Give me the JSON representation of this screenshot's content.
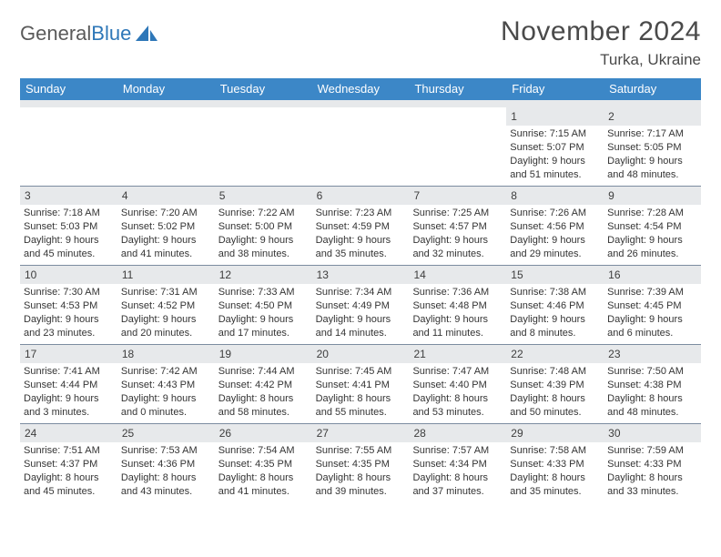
{
  "logo": {
    "text_gray": "General",
    "text_blue": "Blue"
  },
  "title": "November 2024",
  "location": "Turka, Ukraine",
  "colors": {
    "header_bg": "#3c87c7",
    "header_text": "#ffffff",
    "daynum_bg": "#e7e9eb",
    "border": "#7c8ca0",
    "logo_gray": "#5a5a5a",
    "logo_blue": "#2e77b8"
  },
  "day_names": [
    "Sunday",
    "Monday",
    "Tuesday",
    "Wednesday",
    "Thursday",
    "Friday",
    "Saturday"
  ],
  "weeks": [
    [
      {
        "n": "",
        "sr": "",
        "ss": "",
        "dl": ""
      },
      {
        "n": "",
        "sr": "",
        "ss": "",
        "dl": ""
      },
      {
        "n": "",
        "sr": "",
        "ss": "",
        "dl": ""
      },
      {
        "n": "",
        "sr": "",
        "ss": "",
        "dl": ""
      },
      {
        "n": "",
        "sr": "",
        "ss": "",
        "dl": ""
      },
      {
        "n": "1",
        "sr": "Sunrise: 7:15 AM",
        "ss": "Sunset: 5:07 PM",
        "dl": "Daylight: 9 hours and 51 minutes."
      },
      {
        "n": "2",
        "sr": "Sunrise: 7:17 AM",
        "ss": "Sunset: 5:05 PM",
        "dl": "Daylight: 9 hours and 48 minutes."
      }
    ],
    [
      {
        "n": "3",
        "sr": "Sunrise: 7:18 AM",
        "ss": "Sunset: 5:03 PM",
        "dl": "Daylight: 9 hours and 45 minutes."
      },
      {
        "n": "4",
        "sr": "Sunrise: 7:20 AM",
        "ss": "Sunset: 5:02 PM",
        "dl": "Daylight: 9 hours and 41 minutes."
      },
      {
        "n": "5",
        "sr": "Sunrise: 7:22 AM",
        "ss": "Sunset: 5:00 PM",
        "dl": "Daylight: 9 hours and 38 minutes."
      },
      {
        "n": "6",
        "sr": "Sunrise: 7:23 AM",
        "ss": "Sunset: 4:59 PM",
        "dl": "Daylight: 9 hours and 35 minutes."
      },
      {
        "n": "7",
        "sr": "Sunrise: 7:25 AM",
        "ss": "Sunset: 4:57 PM",
        "dl": "Daylight: 9 hours and 32 minutes."
      },
      {
        "n": "8",
        "sr": "Sunrise: 7:26 AM",
        "ss": "Sunset: 4:56 PM",
        "dl": "Daylight: 9 hours and 29 minutes."
      },
      {
        "n": "9",
        "sr": "Sunrise: 7:28 AM",
        "ss": "Sunset: 4:54 PM",
        "dl": "Daylight: 9 hours and 26 minutes."
      }
    ],
    [
      {
        "n": "10",
        "sr": "Sunrise: 7:30 AM",
        "ss": "Sunset: 4:53 PM",
        "dl": "Daylight: 9 hours and 23 minutes."
      },
      {
        "n": "11",
        "sr": "Sunrise: 7:31 AM",
        "ss": "Sunset: 4:52 PM",
        "dl": "Daylight: 9 hours and 20 minutes."
      },
      {
        "n": "12",
        "sr": "Sunrise: 7:33 AM",
        "ss": "Sunset: 4:50 PM",
        "dl": "Daylight: 9 hours and 17 minutes."
      },
      {
        "n": "13",
        "sr": "Sunrise: 7:34 AM",
        "ss": "Sunset: 4:49 PM",
        "dl": "Daylight: 9 hours and 14 minutes."
      },
      {
        "n": "14",
        "sr": "Sunrise: 7:36 AM",
        "ss": "Sunset: 4:48 PM",
        "dl": "Daylight: 9 hours and 11 minutes."
      },
      {
        "n": "15",
        "sr": "Sunrise: 7:38 AM",
        "ss": "Sunset: 4:46 PM",
        "dl": "Daylight: 9 hours and 8 minutes."
      },
      {
        "n": "16",
        "sr": "Sunrise: 7:39 AM",
        "ss": "Sunset: 4:45 PM",
        "dl": "Daylight: 9 hours and 6 minutes."
      }
    ],
    [
      {
        "n": "17",
        "sr": "Sunrise: 7:41 AM",
        "ss": "Sunset: 4:44 PM",
        "dl": "Daylight: 9 hours and 3 minutes."
      },
      {
        "n": "18",
        "sr": "Sunrise: 7:42 AM",
        "ss": "Sunset: 4:43 PM",
        "dl": "Daylight: 9 hours and 0 minutes."
      },
      {
        "n": "19",
        "sr": "Sunrise: 7:44 AM",
        "ss": "Sunset: 4:42 PM",
        "dl": "Daylight: 8 hours and 58 minutes."
      },
      {
        "n": "20",
        "sr": "Sunrise: 7:45 AM",
        "ss": "Sunset: 4:41 PM",
        "dl": "Daylight: 8 hours and 55 minutes."
      },
      {
        "n": "21",
        "sr": "Sunrise: 7:47 AM",
        "ss": "Sunset: 4:40 PM",
        "dl": "Daylight: 8 hours and 53 minutes."
      },
      {
        "n": "22",
        "sr": "Sunrise: 7:48 AM",
        "ss": "Sunset: 4:39 PM",
        "dl": "Daylight: 8 hours and 50 minutes."
      },
      {
        "n": "23",
        "sr": "Sunrise: 7:50 AM",
        "ss": "Sunset: 4:38 PM",
        "dl": "Daylight: 8 hours and 48 minutes."
      }
    ],
    [
      {
        "n": "24",
        "sr": "Sunrise: 7:51 AM",
        "ss": "Sunset: 4:37 PM",
        "dl": "Daylight: 8 hours and 45 minutes."
      },
      {
        "n": "25",
        "sr": "Sunrise: 7:53 AM",
        "ss": "Sunset: 4:36 PM",
        "dl": "Daylight: 8 hours and 43 minutes."
      },
      {
        "n": "26",
        "sr": "Sunrise: 7:54 AM",
        "ss": "Sunset: 4:35 PM",
        "dl": "Daylight: 8 hours and 41 minutes."
      },
      {
        "n": "27",
        "sr": "Sunrise: 7:55 AM",
        "ss": "Sunset: 4:35 PM",
        "dl": "Daylight: 8 hours and 39 minutes."
      },
      {
        "n": "28",
        "sr": "Sunrise: 7:57 AM",
        "ss": "Sunset: 4:34 PM",
        "dl": "Daylight: 8 hours and 37 minutes."
      },
      {
        "n": "29",
        "sr": "Sunrise: 7:58 AM",
        "ss": "Sunset: 4:33 PM",
        "dl": "Daylight: 8 hours and 35 minutes."
      },
      {
        "n": "30",
        "sr": "Sunrise: 7:59 AM",
        "ss": "Sunset: 4:33 PM",
        "dl": "Daylight: 8 hours and 33 minutes."
      }
    ]
  ]
}
